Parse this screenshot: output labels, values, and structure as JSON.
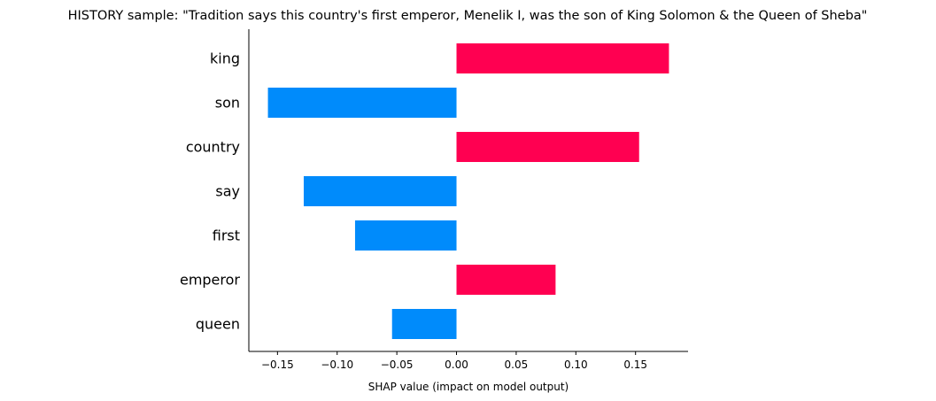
{
  "chart_data": {
    "type": "bar",
    "orientation": "horizontal",
    "title": "HISTORY sample: \"Tradition says this country's first emperor, Menelik I, was the son of King Solomon & the Queen of Sheba\"",
    "xlabel": "SHAP value (impact on model output)",
    "ylabel": "",
    "categories": [
      "king",
      "son",
      "country",
      "say",
      "first",
      "emperor",
      "queen"
    ],
    "values": [
      0.178,
      -0.158,
      0.153,
      -0.128,
      -0.085,
      0.083,
      -0.054
    ],
    "xlim": [
      -0.174,
      0.194
    ],
    "xticks": [
      -0.15,
      -0.1,
      -0.05,
      0.0,
      0.05,
      0.1,
      0.15
    ],
    "xtick_labels": [
      "−0.15",
      "−0.10",
      "−0.05",
      "0.00",
      "0.05",
      "0.10",
      "0.15"
    ],
    "grid": false,
    "colors": {
      "positive": "#ff0051",
      "negative": "#008bfb",
      "axis": "#000000"
    }
  }
}
